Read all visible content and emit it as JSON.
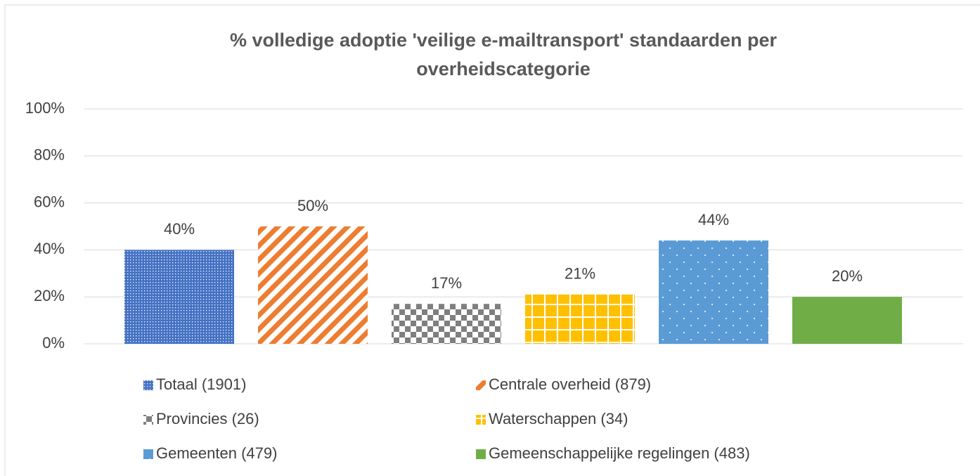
{
  "chart_data": {
    "type": "bar",
    "title": [
      "% volledige adoptie 'veilige e-mailtransport' standaarden per",
      "overheidscategorie"
    ],
    "series": [
      {
        "name": "Totaal (1901)",
        "color": "#4472c4",
        "pattern": "dots",
        "values": [
          40
        ],
        "value_labels": [
          "40%"
        ]
      },
      {
        "name": "Centrale overheid (879)",
        "color": "#ed7d31",
        "pattern": "stripes",
        "values": [
          50
        ],
        "value_labels": [
          "50%"
        ]
      },
      {
        "name": "Provincies (26)",
        "color": "#7f7f7f",
        "pattern": "checker",
        "values": [
          17
        ],
        "value_labels": [
          "17%"
        ]
      },
      {
        "name": "Waterschappen (34)",
        "color": "#ffc000",
        "pattern": "grid",
        "values": [
          21
        ],
        "value_labels": [
          "21%"
        ]
      },
      {
        "name": "Gemeenten (479)",
        "color": "#5b9bd5",
        "pattern": "sparse-dots",
        "values": [
          44
        ],
        "value_labels": [
          "44%"
        ]
      },
      {
        "name": "Gemeenschappelijke regelingen (483)",
        "color": "#70ad47",
        "pattern": "solid",
        "values": [
          20
        ],
        "value_labels": [
          "20%"
        ]
      }
    ],
    "ylim": [
      0,
      100
    ],
    "yticks": [
      {
        "value": 0,
        "label": "0%"
      },
      {
        "value": 20,
        "label": "20%"
      },
      {
        "value": 40,
        "label": "40%"
      },
      {
        "value": 60,
        "label": "60%"
      },
      {
        "value": 80,
        "label": "80%"
      },
      {
        "value": 100,
        "label": "100%"
      }
    ],
    "grid": true
  }
}
